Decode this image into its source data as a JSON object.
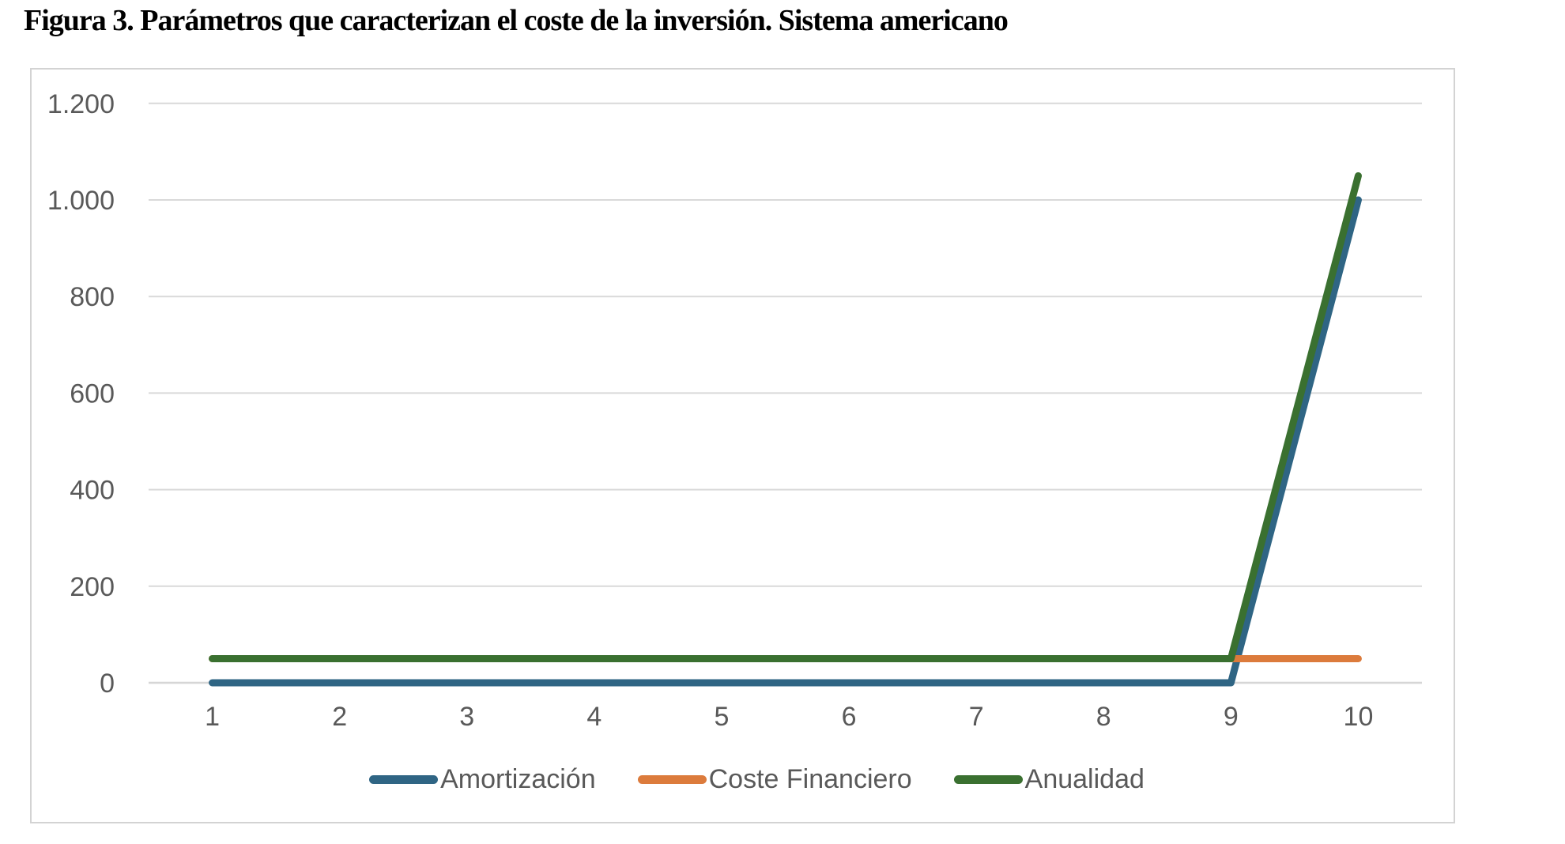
{
  "page": {
    "title": "Figura 3. Parámetros que caracterizan el coste de la inversión. Sistema americano"
  },
  "chart_data": {
    "type": "line",
    "title": "Figura 3. Parámetros que caracterizan el coste de la inversión. Sistema americano",
    "xlabel": "",
    "ylabel": "",
    "x_categories": [
      "1",
      "2",
      "3",
      "4",
      "5",
      "6",
      "7",
      "8",
      "9",
      "10"
    ],
    "ylim": [
      0,
      1200
    ],
    "grid": true,
    "legend_position": "bottom",
    "y_ticks": [
      {
        "value": 0,
        "label": "0"
      },
      {
        "value": 200,
        "label": "200"
      },
      {
        "value": 400,
        "label": "400"
      },
      {
        "value": 600,
        "label": "600"
      },
      {
        "value": 800,
        "label": "800"
      },
      {
        "value": 1000,
        "label": "1.000"
      },
      {
        "value": 1200,
        "label": "1.200"
      }
    ],
    "series": [
      {
        "name": "Amortización",
        "color": "#2f6584",
        "values": [
          0,
          0,
          0,
          0,
          0,
          0,
          0,
          0,
          0,
          1000
        ]
      },
      {
        "name": "Coste Financiero",
        "color": "#dc7b3c",
        "values": [
          50,
          50,
          50,
          50,
          50,
          50,
          50,
          50,
          50,
          50
        ]
      },
      {
        "name": "Anualidad",
        "color": "#3a7030",
        "values": [
          50,
          50,
          50,
          50,
          50,
          50,
          50,
          50,
          50,
          1050
        ]
      }
    ],
    "colors": {
      "gridline": "#d9d9d9",
      "axis_line": "#d6d6d6",
      "tick_label": "#595959",
      "legend_text": "#595959",
      "frame_border": "#d3d3d3",
      "background": "#ffffff"
    }
  }
}
